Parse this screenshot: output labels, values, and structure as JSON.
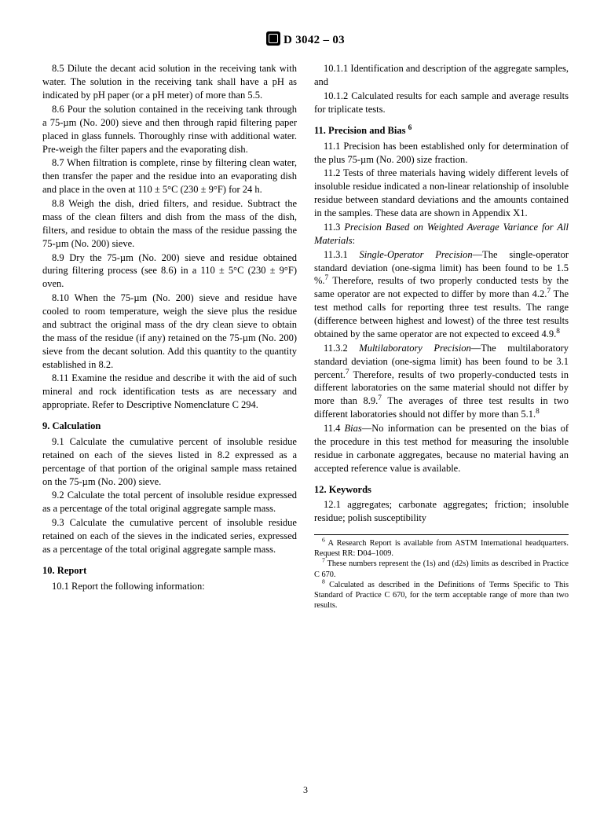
{
  "header": {
    "designation": "D 3042 – 03"
  },
  "left": {
    "p85": "8.5 Dilute the decant acid solution in the receiving tank with water. The solution in the receiving tank shall have a pH as indicated by pH paper (or a pH meter) of more than 5.5.",
    "p86": "8.6 Pour the solution contained in the receiving tank through a 75-µm (No. 200) sieve and then through rapid filtering paper placed in glass funnels. Thoroughly rinse with additional water. Pre-weigh the filter papers and the evaporating dish.",
    "p87": "8.7 When filtration is complete, rinse by filtering clean water, then transfer the paper and the residue into an evaporating dish and place in the oven at 110 ± 5°C (230 ± 9°F) for 24 h.",
    "p88": "8.8 Weigh the dish, dried filters, and residue. Subtract the mass of the clean filters and dish from the mass of the dish, filters, and residue to obtain the mass of the residue passing the 75-µm (No. 200) sieve.",
    "p89": "8.9 Dry the 75-µm (No. 200) sieve and residue obtained during filtering process (see 8.6) in a 110 ± 5°C (230 ± 9°F) oven.",
    "p810": "8.10 When the 75-µm (No. 200) sieve and residue have cooled to room temperature, weigh the sieve plus the residue and subtract the original mass of the dry clean sieve to obtain the mass of the residue (if any) retained on the 75-µm (No. 200) sieve from the decant solution. Add this quantity to the quantity established in 8.2.",
    "p811": "8.11 Examine the residue and describe it with the aid of such mineral and rock identification tests as are necessary and appropriate. Refer to Descriptive Nomenclature C 294.",
    "s9h": "9. Calculation",
    "p91": "9.1 Calculate the cumulative percent of insoluble residue retained on each of the sieves listed in 8.2 expressed as a percentage of that portion of the original sample mass retained on the 75-µm (No. 200) sieve.",
    "p92": "9.2 Calculate the total percent of insoluble residue expressed as a percentage of the total original aggregate sample mass.",
    "p93": "9.3 Calculate the cumulative percent of insoluble residue retained on each of the sieves in the indicated series, expressed as a percentage of the total original aggregate sample mass.",
    "s10h": "10. Report",
    "p101": "10.1 Report the following information:"
  },
  "right": {
    "p1011": "10.1.1 Identification and description of the aggregate samples, and",
    "p1012": "10.1.2 Calculated results for each sample and average results for triplicate tests.",
    "s11h_pre": "11. Precision and Bias ",
    "p111": "11.1 Precision has been established only for determination of the plus 75-µm (No. 200) size fraction.",
    "p112": "11.2 Tests of three materials having widely different levels of insoluble residue indicated a non-linear relationship of insoluble residue between standard deviations and the amounts contained in the samples. These data are shown in Appendix X1.",
    "p113_pre": "11.3 ",
    "p113_em": "Precision Based on Weighted Average Variance for All Materials",
    "p113_post": ":",
    "p1131_pre": "11.3.1 ",
    "p1131_em": "Single-Operator Precision",
    "p1131_a": "—The single-operator standard deviation (one-sigma limit) has been found to be 1.5 %.",
    "p1131_b": " Therefore, results of two properly conducted tests by the same operator are not expected to differ by more than 4.2.",
    "p1131_c": " The test method calls for reporting three test results. The range (difference between highest and lowest) of the three test results obtained by the same operator are not expected to exceed 4.9.",
    "p1132_pre": "11.3.2 ",
    "p1132_em": "Multilaboratory Precision",
    "p1132_a": "—The multilaboratory standard deviation (one-sigma limit) has been found to be 3.1 percent.",
    "p1132_b": " Therefore, results of two properly-conducted tests in different laboratories on the same material should not differ by more than 8.9.",
    "p1132_c": " The averages of three test results in two different laboratories should not differ by more than 5.1.",
    "p114_pre": "11.4 ",
    "p114_em": "Bias",
    "p114_rest": "—No information can be presented on the bias of the procedure in this test method for measuring the insoluble residue in carbonate aggregates, because no material having an accepted reference value is available.",
    "s12h": "12. Keywords",
    "p121": "12.1 aggregates; carbonate aggregates; friction; insoluble residue; polish susceptibility",
    "fn6": " A Research Report is available from ASTM International headquarters. Request RR: D04–1009.",
    "fn7": " These numbers represent the (1s) and (d2s) limits as described in Practice C 670.",
    "fn8": " Calculated as described in the Definitions of Terms Specific to This Standard of Practice C 670, for the term acceptable range of more than two results."
  },
  "pagenum": "3"
}
